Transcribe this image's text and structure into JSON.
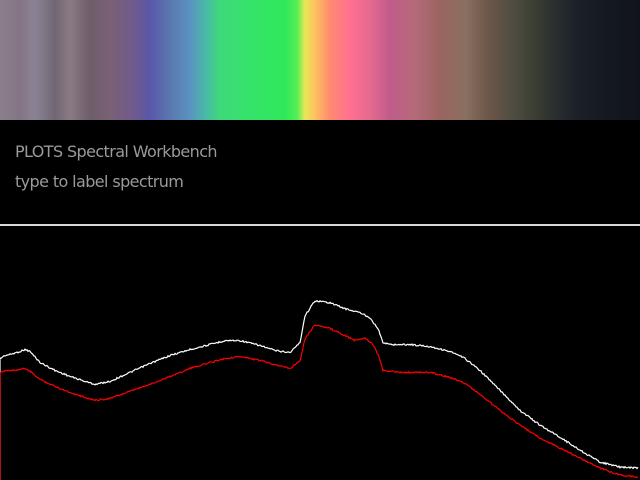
{
  "app": {
    "title": "PLOTS Spectral Workbench",
    "label_prompt": "type to label spectrum"
  },
  "colors": {
    "background": "#000000",
    "text": "#9a9a9a",
    "divider": "#d8d8d8",
    "spectrum_line": "#ffffff",
    "reference_line": "#ff0000"
  },
  "chart_data": {
    "type": "line",
    "xlabel": "",
    "ylabel": "",
    "xlim": [
      0,
      640
    ],
    "ylim": [
      0,
      255
    ],
    "grid": false,
    "series": [
      {
        "color": "#ffffff",
        "x": [
          0,
          5,
          10,
          20,
          25,
          30,
          40,
          55,
          70,
          85,
          95,
          110,
          130,
          150,
          170,
          190,
          210,
          225,
          240,
          260,
          275,
          290,
          300,
          305,
          315,
          330,
          345,
          360,
          370,
          378,
          383,
          390,
          410,
          430,
          450,
          465,
          480,
          500,
          520,
          540,
          560,
          580,
          600,
          620,
          638
        ],
        "values": [
          122,
          125,
          126,
          129,
          131,
          129,
          118,
          110,
          104,
          99,
          96,
          99,
          108,
          117,
          125,
          131,
          136,
          140,
          140,
          135,
          130,
          128,
          138,
          165,
          180,
          178,
          172,
          168,
          163,
          152,
          138,
          136,
          136,
          134,
          129,
          122,
          110,
          90,
          70,
          55,
          43,
          30,
          18,
          13,
          12
        ]
      },
      {
        "color": "#ff0000",
        "x": [
          0,
          5,
          10,
          20,
          25,
          30,
          40,
          55,
          70,
          85,
          95,
          110,
          130,
          150,
          170,
          190,
          210,
          225,
          240,
          260,
          275,
          290,
          300,
          305,
          315,
          330,
          345,
          355,
          365,
          373,
          378,
          383,
          400,
          430,
          450,
          465,
          480,
          500,
          520,
          540,
          560,
          580,
          600,
          620,
          638
        ],
        "values": [
          107,
          110,
          110,
          111,
          112,
          109,
          101,
          94,
          88,
          83,
          80,
          82,
          89,
          96,
          104,
          112,
          118,
          122,
          124,
          120,
          116,
          112,
          120,
          142,
          156,
          152,
          145,
          140,
          143,
          136,
          126,
          110,
          108,
          108,
          103,
          97,
          86,
          70,
          55,
          42,
          32,
          22,
          12,
          5,
          3
        ]
      }
    ]
  }
}
